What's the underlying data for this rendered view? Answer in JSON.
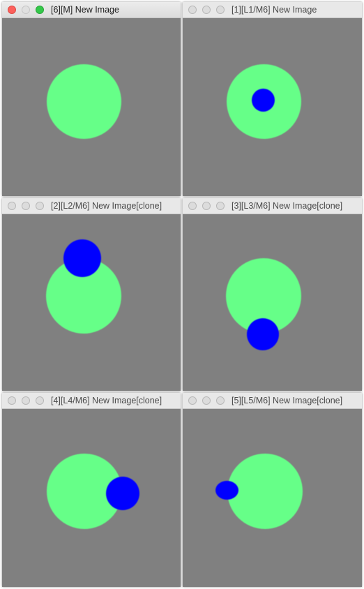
{
  "colors": {
    "background": "#808080",
    "big_circle": "#66ff88",
    "small_circle": "#0000ff"
  },
  "windows": [
    {
      "title": "[6][M] New Image",
      "active": true
    },
    {
      "title": "[1][L1/M6] New Image",
      "active": false
    },
    {
      "title": "[2][L2/M6] New Image[clone]",
      "active": false
    },
    {
      "title": "[3][L3/M6] New Image[clone]",
      "active": false
    },
    {
      "title": "[4][L4/M6] New Image[clone]",
      "active": false
    },
    {
      "title": "[5][L5/M6] New Image[clone]",
      "active": false
    }
  ]
}
